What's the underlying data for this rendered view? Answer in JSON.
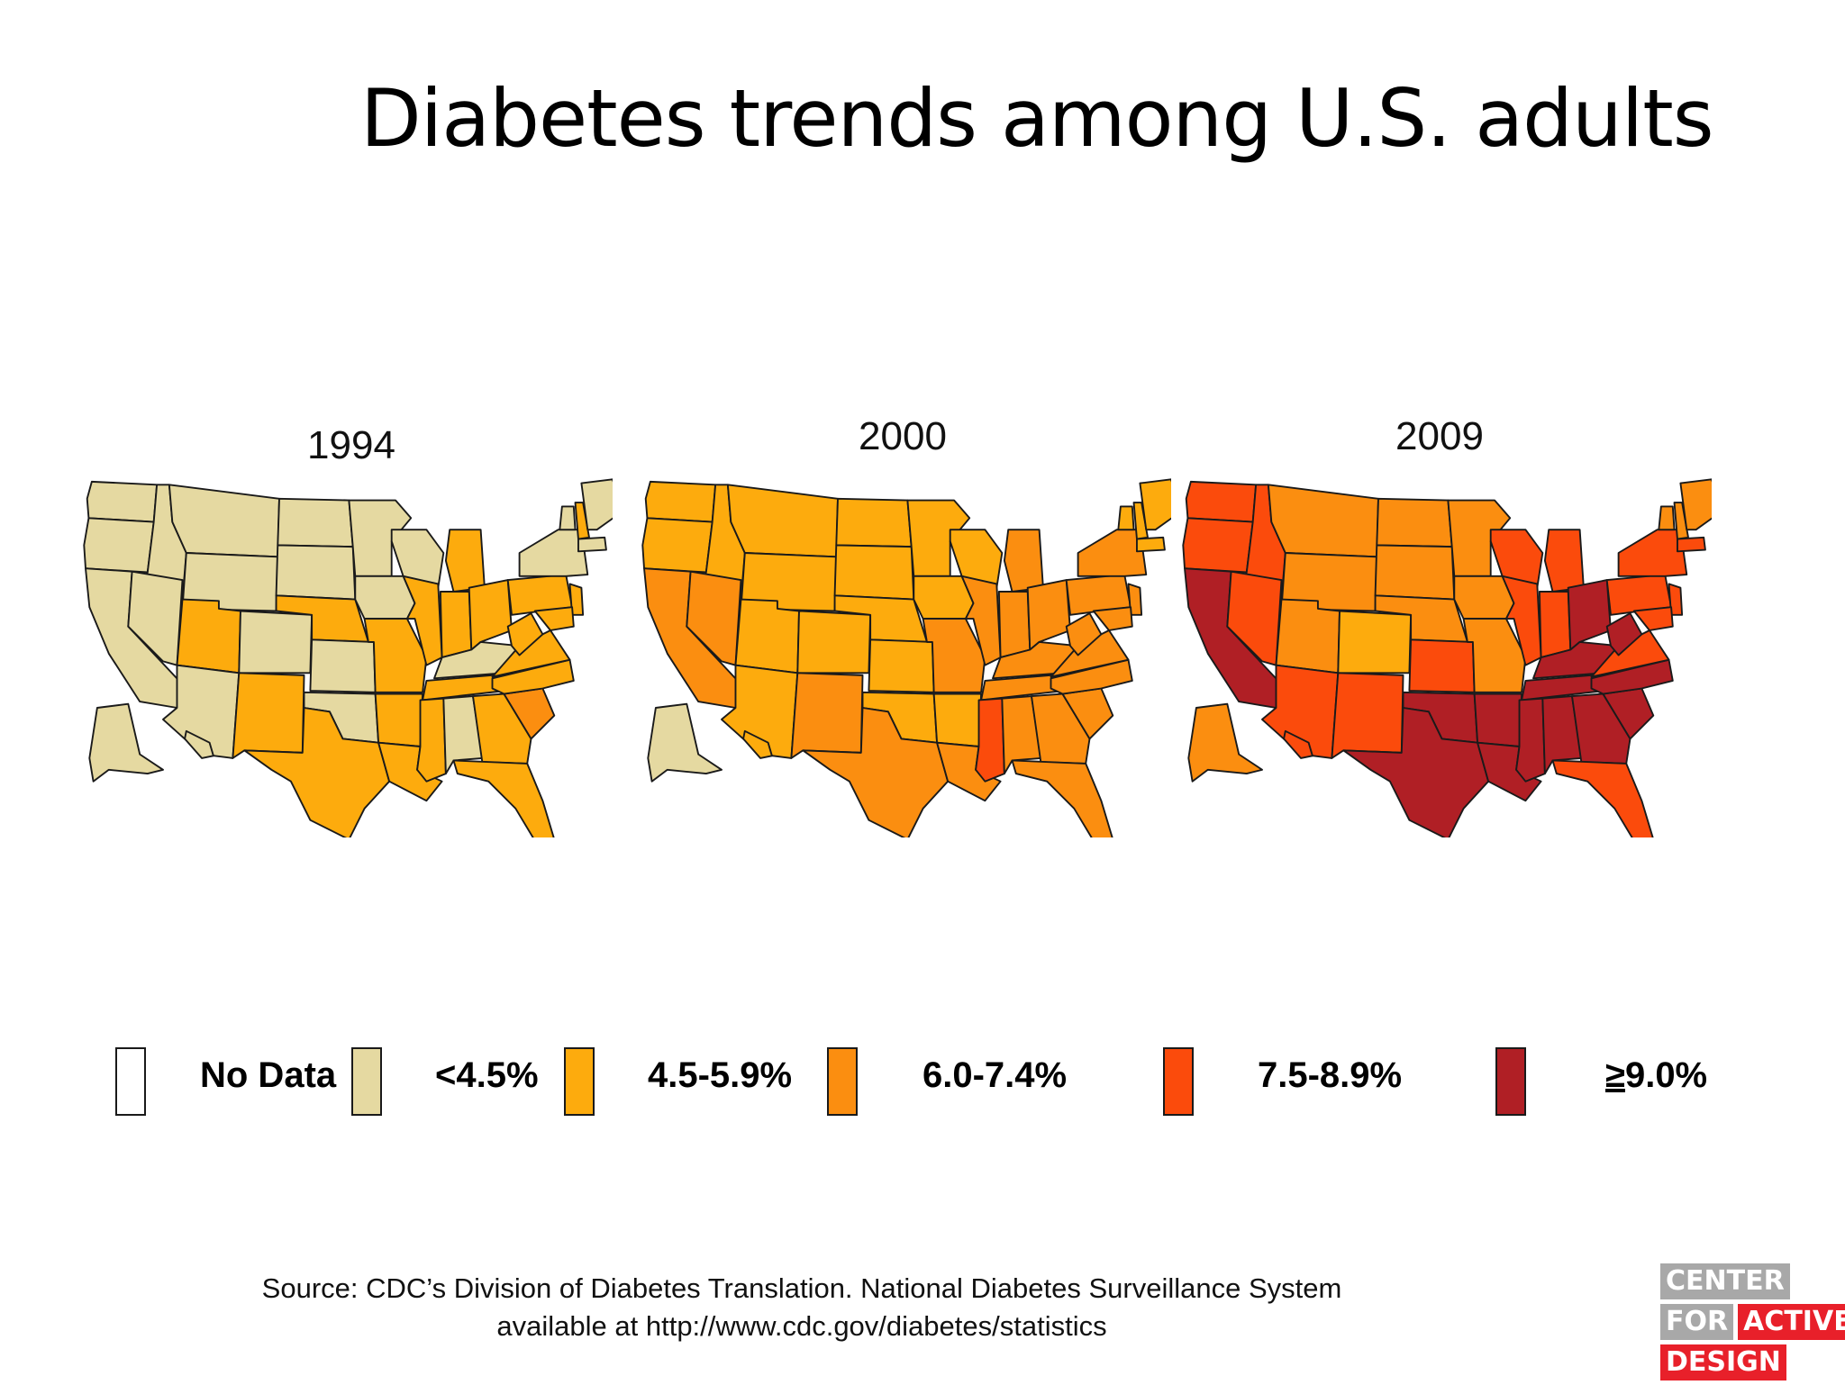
{
  "title": "Diabetes trends among U.S. adults",
  "maps": [
    {
      "year": "1994"
    },
    {
      "year": "2000"
    },
    {
      "year": "2009"
    }
  ],
  "legend": [
    {
      "label": "No Data",
      "color": "#ffffff"
    },
    {
      "label": "<4.5%",
      "color": "#e5d9a1"
    },
    {
      "label": "4.5-5.9%",
      "color": "#fdab0d"
    },
    {
      "label": "6.0-7.4%",
      "color": "#fb8e10"
    },
    {
      "label": "7.5-8.9%",
      "color": "#fb4b0c"
    },
    {
      "label": "9.0%",
      "prefix": "≥",
      "color": "#b01f25"
    }
  ],
  "source": {
    "line1": "Source: CDC’s Division of Diabetes Translation. National Diabetes Surveillance System",
    "line2": "available at http://www.cdc.gov/diabetes/statistics"
  },
  "logo": {
    "line1": "CENTER",
    "line2a": "FOR",
    "line2b": "ACTIVE",
    "line3": "DESIGN"
  }
}
